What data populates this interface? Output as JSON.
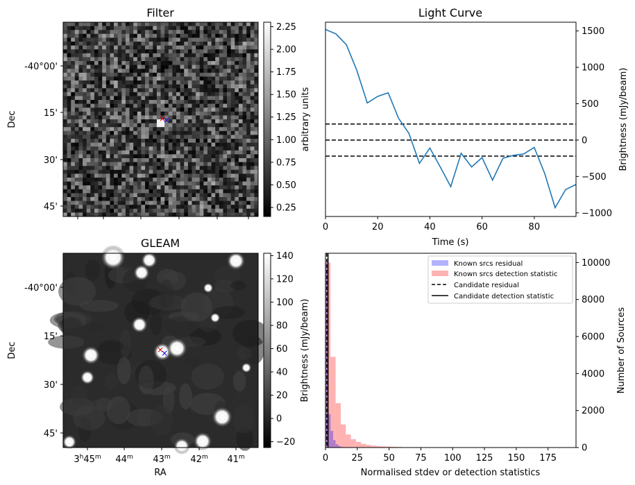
{
  "panels": {
    "filter": {
      "title": "Filter",
      "ylabel": "Dec",
      "colorbar_label": "arbitrary units",
      "colorbar_ticks": [
        "0.25",
        "0.50",
        "0.75",
        "1.00",
        "1.25",
        "1.50",
        "1.75",
        "2.00",
        "2.25"
      ],
      "colorbar_range": [
        0.15,
        2.3
      ],
      "dec_ticks": [
        "-40°00'",
        "15'",
        "30'",
        "45'"
      ]
    },
    "gleam": {
      "title": "GLEAM",
      "ylabel": "Dec",
      "xlabel": "RA",
      "colorbar_label": "Brightness (mJy/beam)",
      "colorbar_ticks": [
        "−20",
        "0",
        "20",
        "40",
        "60",
        "80",
        "100",
        "120",
        "140"
      ],
      "colorbar_range": [
        -25,
        142
      ],
      "dec_ticks": [
        "-40°00'",
        "15'",
        "30'",
        "45'"
      ],
      "ra_ticks": [
        {
          "main": "3",
          "sup1": "h",
          "mid": "45",
          "sup2": "m"
        },
        {
          "main": "44",
          "sup1": "",
          "mid": "",
          "sup2": "m"
        },
        {
          "main": "43",
          "sup1": "",
          "mid": "",
          "sup2": "m"
        },
        {
          "main": "42",
          "sup1": "",
          "mid": "",
          "sup2": "m"
        },
        {
          "main": "41",
          "sup1": "",
          "mid": "",
          "sup2": "m"
        }
      ]
    },
    "lightcurve": {
      "title": "Light Curve",
      "xlabel": "Time (s)",
      "ylabel": "Brightness (mJy/beam)"
    },
    "histogram": {
      "xlabel": "Normalised stdev or detection statistics",
      "ylabel": "Number of Sources"
    }
  },
  "chart_data": [
    {
      "type": "line",
      "title": "Light Curve",
      "xlabel": "Time (s)",
      "ylabel": "Brightness (mJy/beam)",
      "xlim": [
        0,
        96
      ],
      "ylim": [
        -1050,
        1620
      ],
      "x_ticks": [
        0,
        20,
        40,
        60,
        80
      ],
      "y_ticks": [
        -1000,
        -500,
        0,
        500,
        1000,
        1500
      ],
      "series": [
        {
          "color": "#1f77b4",
          "x": [
            0,
            4,
            8,
            12,
            16,
            20,
            24,
            28,
            32,
            36,
            40,
            44,
            48,
            52,
            56,
            60,
            64,
            68,
            72,
            76,
            80,
            84,
            88,
            92,
            96
          ],
          "y": [
            1520,
            1460,
            1310,
            960,
            510,
            600,
            650,
            300,
            90,
            -320,
            -110,
            -370,
            -640,
            -180,
            -370,
            -240,
            -550,
            -250,
            -210,
            -190,
            -100,
            -460,
            -930,
            -680,
            -610
          ]
        }
      ],
      "hlines": [
        {
          "y": 220,
          "style": "dashed",
          "color": "#000000"
        },
        {
          "y": 0,
          "style": "dashed",
          "color": "#000000"
        },
        {
          "y": -220,
          "style": "dashed",
          "color": "#000000"
        }
      ]
    },
    {
      "type": "bar",
      "subtype": "histogram",
      "xlabel": "Normalised stdev or detection statistics",
      "ylabel": "Number of Sources",
      "xlim": [
        0,
        197
      ],
      "ylim": [
        0,
        10500
      ],
      "x_ticks": [
        0,
        25,
        50,
        75,
        100,
        125,
        150,
        175
      ],
      "y_ticks": [
        0,
        2000,
        4000,
        6000,
        8000,
        10000
      ],
      "legend_position": "top-right",
      "series": [
        {
          "name": "Known srcs residual",
          "color": "#0000ff",
          "alpha": 0.3,
          "bin_width": 2,
          "x": [
            0,
            2,
            4,
            6,
            8,
            10,
            12
          ],
          "values": [
            10000,
            1800,
            900,
            400,
            180,
            80,
            30
          ]
        },
        {
          "name": "Known srcs detection statistic",
          "color": "#ff0000",
          "alpha": 0.3,
          "bin_width": 4,
          "x": [
            0,
            4,
            8,
            12,
            16,
            20,
            24,
            28,
            32,
            36,
            40,
            44,
            48,
            52,
            56,
            60,
            64
          ],
          "values": [
            10000,
            4900,
            2400,
            1250,
            700,
            450,
            300,
            200,
            140,
            100,
            80,
            60,
            50,
            40,
            30,
            20,
            15
          ]
        }
      ],
      "vlines": [
        {
          "name": "Candidate residual",
          "x": 1.0,
          "style": "dashed",
          "color": "#000000"
        },
        {
          "name": "Candidate detection statistic",
          "x": 2.0,
          "style": "solid",
          "color": "#000000"
        }
      ]
    }
  ]
}
